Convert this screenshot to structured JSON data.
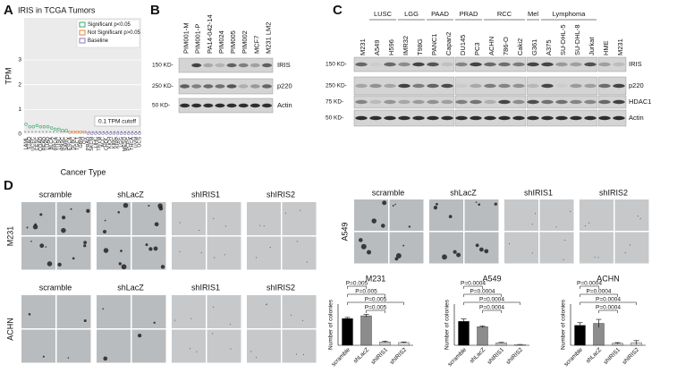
{
  "panel_labels": [
    "A",
    "B",
    "C",
    "D"
  ],
  "chart_data": [
    {
      "type": "dot",
      "title": "IRIS in TCGA Tumors",
      "xlabel": "Cancer Type",
      "ylabel": "TPM",
      "categories": [
        "LAML",
        "STAD",
        "UCEC",
        "CESC",
        "COAD",
        "READ",
        "LUAD",
        "BLCA",
        "BRCA",
        "LUSC",
        "HNSC",
        "SARC",
        "ESCA",
        "DLBC",
        "TGCT",
        "GBM",
        "OV",
        "PRAD",
        "SKCM",
        "LIHC",
        "THYM",
        "ACC",
        "CHOL",
        "KICH",
        "KIRC",
        "KIRP",
        "LGG",
        "MESO",
        "PCPG",
        "THCA",
        "UVM",
        "UCS"
      ],
      "series": [
        {
          "name": "Significant p<0.05",
          "color": "#3aa76d",
          "values": [
            0.4,
            0.3,
            0.3,
            0.35,
            0.3,
            0.3,
            0.3,
            0.25,
            0.2,
            0.2,
            0.15,
            0.15,
            null,
            null,
            null,
            null,
            null,
            null,
            null,
            null,
            null,
            null,
            null,
            null,
            null,
            null,
            null,
            null,
            null,
            null,
            null,
            null
          ]
        },
        {
          "name": "Not Significant p>0.05",
          "color": "#e8833a",
          "values": [
            null,
            null,
            null,
            null,
            null,
            null,
            null,
            null,
            null,
            null,
            null,
            null,
            0.08,
            0.08,
            0.08,
            0.08,
            0.08,
            null,
            null,
            null,
            null,
            null,
            null,
            null,
            null,
            null,
            null,
            null,
            null,
            null,
            null,
            null
          ]
        },
        {
          "name": "Baseline",
          "color": "#8a7dbf",
          "values": [
            null,
            null,
            null,
            null,
            null,
            null,
            null,
            null,
            null,
            null,
            null,
            null,
            null,
            null,
            null,
            null,
            null,
            0.03,
            0.03,
            0.03,
            0.03,
            0.03,
            0.03,
            0.03,
            0.03,
            0.03,
            0.03,
            0.03,
            0.03,
            0.03,
            0.03,
            0.03
          ]
        }
      ],
      "cutoff": {
        "value": 0.1,
        "label": "0.1 TPM cutoff"
      },
      "ylim": [
        0,
        4.7
      ],
      "yticks": [
        0,
        1,
        2,
        3
      ],
      "grid": true
    },
    {
      "type": "bar",
      "title": "M231",
      "ylabel": "Number of colonies",
      "categories": [
        "scramble",
        "shLacZ",
        "shIRIS1",
        "shIRIS2"
      ],
      "values": [
        195,
        215,
        25,
        20
      ],
      "errors": [
        8,
        10,
        5,
        4
      ],
      "colors": [
        "#000000",
        "#8c8c8c",
        "#c4c4c4",
        "#d8d8d8"
      ],
      "ylim": [
        0,
        300
      ],
      "pvalues": [
        "P=0.005",
        "P=0.005",
        "P=0.005",
        "P=0.005"
      ]
    },
    {
      "type": "bar",
      "title": "A549",
      "ylabel": "Number of colonies",
      "categories": [
        "scramble",
        "shLacZ",
        "shIRIS1",
        "shIRIS2"
      ],
      "values": [
        580,
        450,
        60,
        15
      ],
      "errors": [
        60,
        20,
        10,
        5
      ],
      "colors": [
        "#000000",
        "#8c8c8c",
        "#c4c4c4",
        "#d8d8d8"
      ],
      "ylim": [
        0,
        1000
      ],
      "pvalues": [
        "P=0.0004",
        "P=0.0004",
        "P=0.0004",
        "P=0.0004"
      ]
    },
    {
      "type": "bar",
      "title": "ACHN",
      "ylabel": "Number of colonies",
      "categories": [
        "scramble",
        "shLacZ",
        "shIRIS1",
        "shIRIS2"
      ],
      "values": [
        300,
        330,
        30,
        40
      ],
      "errors": [
        40,
        60,
        10,
        30
      ],
      "colors": [
        "#000000",
        "#8c8c8c",
        "#c4c4c4",
        "#d8d8d8"
      ],
      "ylim": [
        0,
        620
      ],
      "pvalues": [
        "P=0.0004",
        "P=0.0004",
        "P=0.0004",
        "P=0.0004"
      ]
    }
  ],
  "blot_b": {
    "lanes": [
      "PIM001-M",
      "PIM001-P",
      "PA14-042-14",
      "PIM024",
      "PIM005",
      "PIM002",
      "MCF7",
      "M231 LM2"
    ],
    "rows": [
      "IRIS",
      "p220",
      "Actin"
    ],
    "markers": [
      "150 KD-",
      "250 KD-",
      "50 KD-"
    ]
  },
  "blot_c": {
    "groups": [
      "LUSC",
      "LGG",
      "PAAD",
      "PRAD",
      "RCC",
      "Mel",
      "Lymphoma"
    ],
    "lanes": [
      "M231",
      "A549",
      "H596",
      "IMR32",
      "T98G",
      "PANC1",
      "Capan2",
      "DU145",
      "PC3",
      "ACHN",
      "786-O",
      "Caki2",
      "G361",
      "A375",
      "SU-DHL-5",
      "SU-DHL-8",
      "Jurkat",
      "HME",
      "M231"
    ],
    "rows": [
      "IRIS",
      "p220",
      "HDAC1",
      "Actin"
    ],
    "markers": [
      "150 KD-",
      "250 KD-",
      "75 KD-",
      "50 KD-"
    ]
  },
  "micrographs": {
    "conditions": [
      "scramble",
      "shLacZ",
      "shIRIS1",
      "shIRIS2"
    ],
    "cell_lines": [
      "M231",
      "A549",
      "ACHN"
    ]
  }
}
